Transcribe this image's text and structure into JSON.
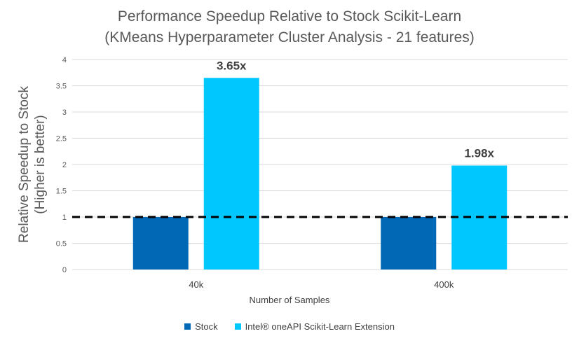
{
  "chart_data": {
    "type": "bar",
    "title": "Performance Speedup Relative to Stock Scikit-Learn",
    "subtitle": "(KMeans Hyperparameter Cluster Analysis - 21 features)",
    "xlabel": "Number of Samples",
    "ylabel": "Relative Speedup to Stock",
    "ylabel_line2": "(Higher is better)",
    "categories": [
      "40k",
      "400k"
    ],
    "series": [
      {
        "name": "Stock",
        "values": [
          1,
          1
        ],
        "color": "#0068B5"
      },
      {
        "name": "Intel® oneAPI Scikit-Learn Extension",
        "values": [
          3.65,
          1.98
        ],
        "color": "#00C7FD",
        "data_labels": [
          "3.65x",
          "1.98x"
        ]
      }
    ],
    "ylim": [
      0,
      4
    ],
    "yticks": [
      "0",
      "0.5",
      "1",
      "1.5",
      "2",
      "2.5",
      "3",
      "3.5",
      "4"
    ],
    "ytick_values": [
      0,
      0.5,
      1,
      1.5,
      2,
      2.5,
      3,
      3.5,
      4
    ],
    "reference_line": {
      "value": 1,
      "style": "dashed",
      "color": "#000000"
    },
    "grid": true,
    "legend_position": "bottom"
  }
}
